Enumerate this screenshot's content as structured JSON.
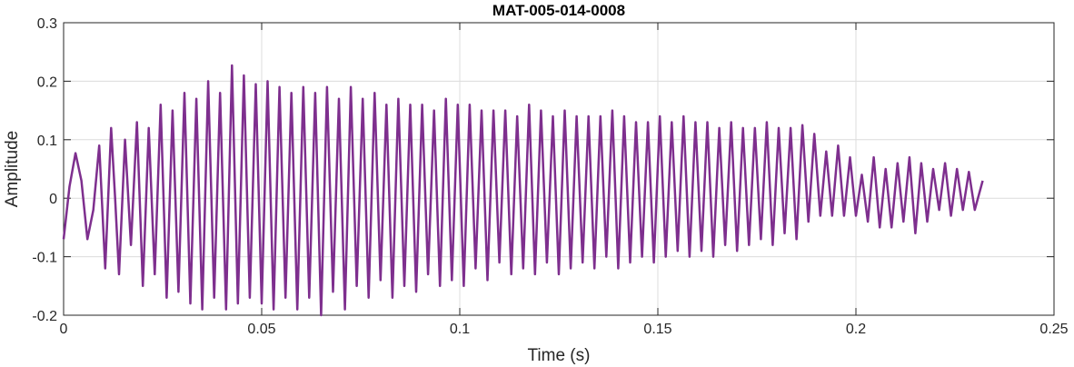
{
  "chart_data": {
    "type": "line",
    "title": "MAT-005-014-0008",
    "xlabel": "Time (s)",
    "ylabel": "Amplitude",
    "xlim": [
      0,
      0.25
    ],
    "ylim": [
      -0.2,
      0.3
    ],
    "xticks": [
      0,
      0.05,
      0.1,
      0.15,
      0.2,
      0.25
    ],
    "xtick_labels": [
      "0",
      "0.05",
      "0.1",
      "0.15",
      "0.2",
      "0.25"
    ],
    "yticks": [
      -0.2,
      -0.1,
      0,
      0.1,
      0.2,
      0.3
    ],
    "ytick_labels": [
      "-0.2",
      "-0.1",
      "0",
      "0.1",
      "0.2",
      "0.3"
    ],
    "grid": true,
    "series": [
      {
        "color": "#7E2F8E",
        "x": [
          0,
          0.0015,
          0.003,
          0.0045,
          0.006,
          0.0075,
          0.009,
          0.0105,
          0.012,
          0.013,
          0.014,
          0.0155,
          0.017,
          0.0185,
          0.02,
          0.0215,
          0.023,
          0.0245,
          0.026,
          0.0275,
          0.029,
          0.0305,
          0.032,
          0.0335,
          0.035,
          0.0365,
          0.038,
          0.0395,
          0.041,
          0.0425,
          0.044,
          0.0455,
          0.047,
          0.0485,
          0.05,
          0.0515,
          0.053,
          0.0545,
          0.056,
          0.0575,
          0.059,
          0.0605,
          0.062,
          0.0635,
          0.065,
          0.0665,
          0.068,
          0.0695,
          0.071,
          0.0725,
          0.074,
          0.0755,
          0.077,
          0.0785,
          0.08,
          0.0815,
          0.083,
          0.0845,
          0.086,
          0.0875,
          0.089,
          0.0905,
          0.092,
          0.0935,
          0.095,
          0.0965,
          0.098,
          0.0995,
          0.101,
          0.1025,
          0.104,
          0.1055,
          0.107,
          0.1085,
          0.11,
          0.1115,
          0.113,
          0.1145,
          0.116,
          0.1175,
          0.119,
          0.1205,
          0.122,
          0.1235,
          0.125,
          0.1265,
          0.128,
          0.1295,
          0.131,
          0.1325,
          0.134,
          0.1355,
          0.137,
          0.1385,
          0.14,
          0.1415,
          0.143,
          0.1445,
          0.146,
          0.1475,
          0.149,
          0.1505,
          0.152,
          0.1535,
          0.155,
          0.1565,
          0.158,
          0.1595,
          0.161,
          0.1625,
          0.164,
          0.1655,
          0.167,
          0.1685,
          0.17,
          0.1715,
          0.173,
          0.1745,
          0.176,
          0.1775,
          0.179,
          0.1805,
          0.182,
          0.1835,
          0.185,
          0.1865,
          0.188,
          0.1895,
          0.191,
          0.1925,
          0.194,
          0.1955,
          0.197,
          0.1985,
          0.2,
          0.2015,
          0.203,
          0.2045,
          0.206,
          0.2075,
          0.209,
          0.2105,
          0.212,
          0.2135,
          0.215,
          0.2165,
          0.218,
          0.2195,
          0.221,
          0.2225,
          0.224,
          0.2255,
          0.227,
          0.2285,
          0.23,
          0.232
        ],
        "y": [
          -0.07,
          0.02,
          0.077,
          0.03,
          -0.07,
          -0.02,
          0.09,
          -0.12,
          0.12,
          0.0,
          -0.13,
          0.1,
          -0.08,
          0.13,
          -0.15,
          0.12,
          -0.13,
          0.16,
          -0.17,
          0.15,
          -0.16,
          0.18,
          -0.18,
          0.17,
          -0.19,
          0.2,
          -0.17,
          0.18,
          -0.19,
          0.227,
          -0.18,
          0.21,
          -0.17,
          0.195,
          -0.18,
          0.2,
          -0.19,
          0.19,
          -0.17,
          0.18,
          -0.19,
          0.19,
          -0.17,
          0.18,
          -0.2,
          0.19,
          -0.16,
          0.17,
          -0.19,
          0.19,
          -0.15,
          0.17,
          -0.17,
          0.18,
          -0.14,
          0.16,
          -0.17,
          0.17,
          -0.15,
          0.16,
          -0.16,
          0.16,
          -0.13,
          0.15,
          -0.15,
          0.17,
          -0.14,
          0.16,
          -0.15,
          0.16,
          -0.12,
          0.15,
          -0.14,
          0.15,
          -0.11,
          0.15,
          -0.13,
          0.14,
          -0.12,
          0.16,
          -0.13,
          0.15,
          -0.11,
          0.14,
          -0.13,
          0.15,
          -0.12,
          0.14,
          -0.11,
          0.14,
          -0.12,
          0.14,
          -0.1,
          0.15,
          -0.12,
          0.14,
          -0.11,
          0.13,
          -0.1,
          0.13,
          -0.11,
          0.14,
          -0.1,
          0.13,
          -0.09,
          0.14,
          -0.1,
          0.13,
          -0.09,
          0.13,
          -0.1,
          0.12,
          -0.08,
          0.13,
          -0.09,
          0.12,
          -0.08,
          0.12,
          -0.07,
          0.13,
          -0.08,
          0.12,
          -0.06,
          0.12,
          -0.07,
          0.125,
          -0.04,
          0.11,
          -0.03,
          0.08,
          -0.03,
          0.09,
          -0.03,
          0.07,
          -0.03,
          0.04,
          -0.04,
          0.07,
          -0.05,
          0.05,
          -0.05,
          0.06,
          -0.04,
          0.07,
          -0.06,
          0.06,
          -0.04,
          0.05,
          -0.02,
          0.06,
          -0.03,
          0.05,
          -0.02,
          0.045,
          -0.02,
          0.03
        ]
      }
    ]
  }
}
